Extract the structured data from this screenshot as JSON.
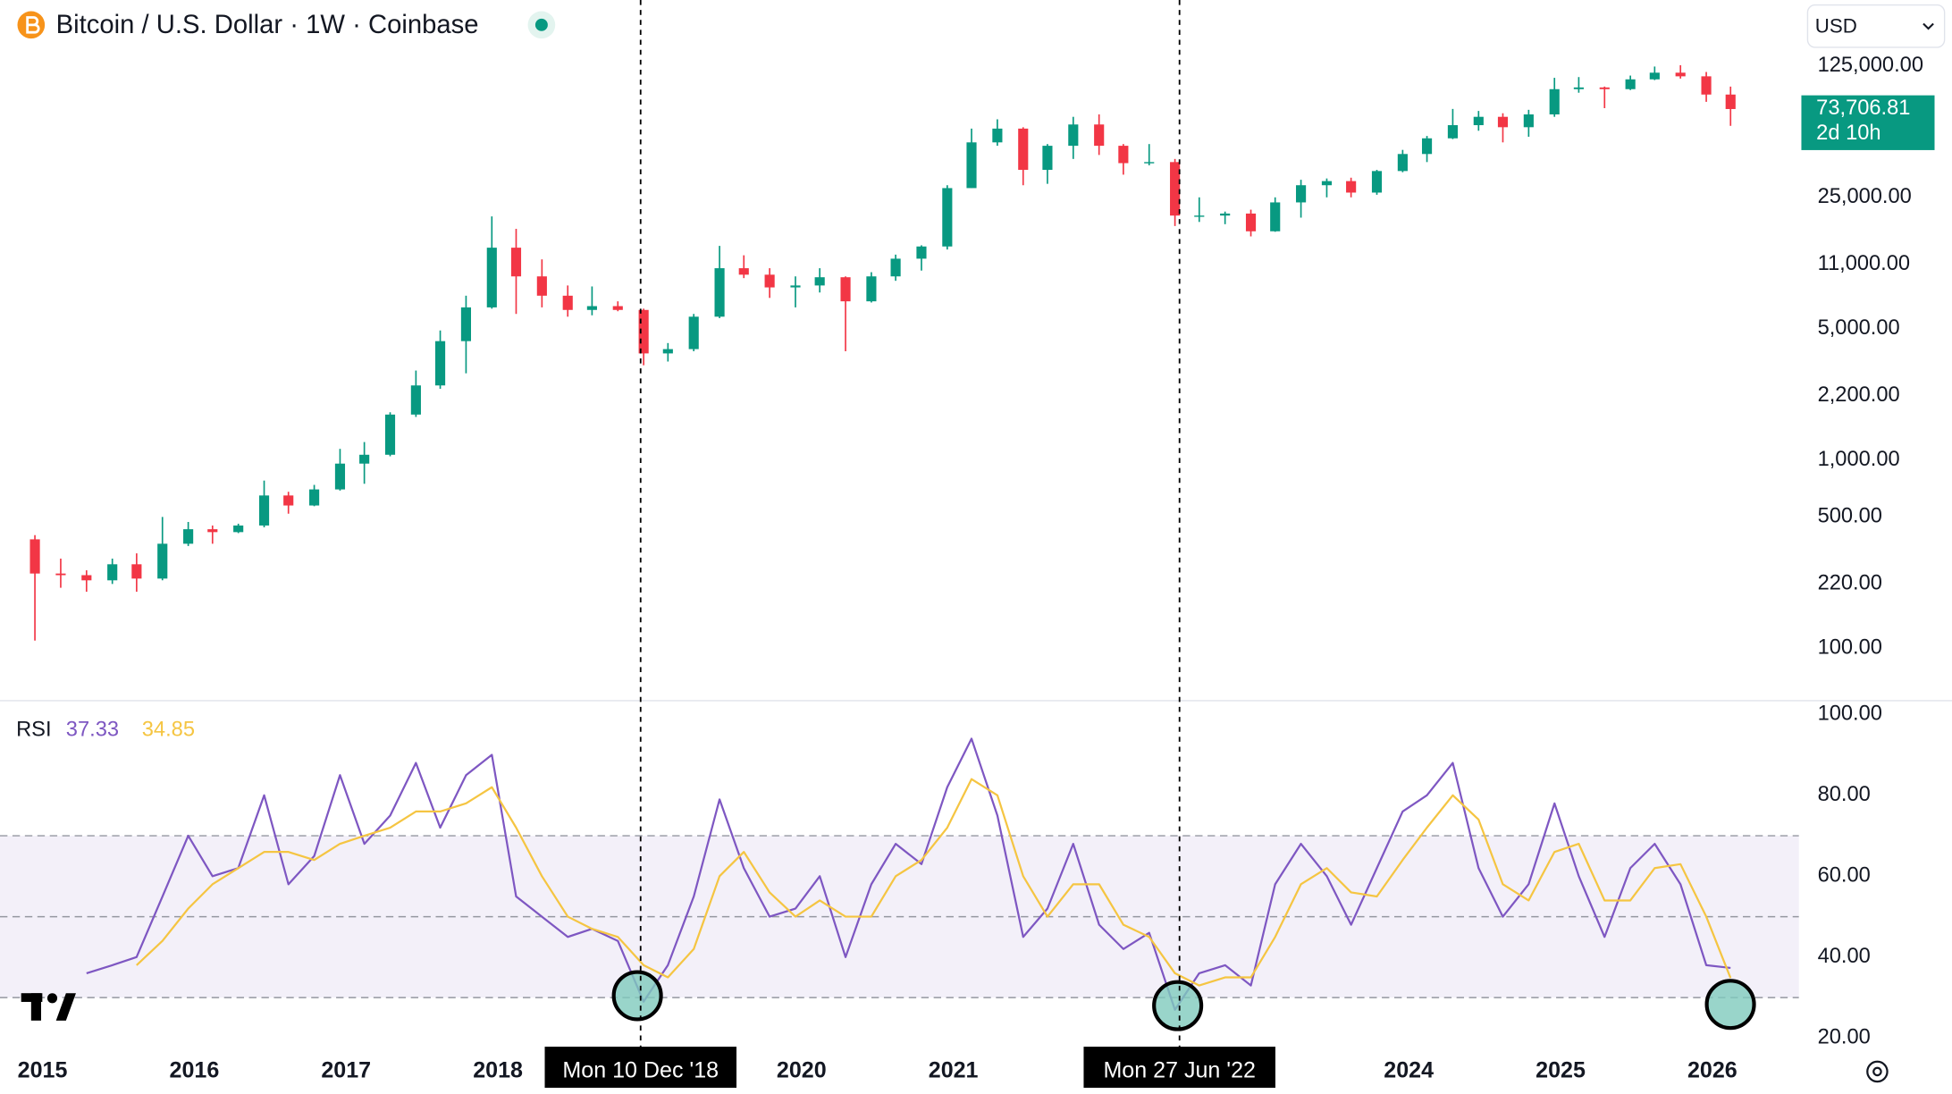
{
  "chart_data": [
    {
      "type": "candlestick",
      "title": "Bitcoin / U.S. Dollar · 1W · Coinbase",
      "currency": "USD",
      "x": [
        2014.95,
        2015.12,
        2015.29,
        2015.46,
        2015.62,
        2015.79,
        2015.96,
        2016.12,
        2016.29,
        2016.46,
        2016.62,
        2016.79,
        2016.96,
        2017.12,
        2017.29,
        2017.46,
        2017.62,
        2017.79,
        2017.96,
        2018.12,
        2018.29,
        2018.46,
        2018.62,
        2018.79,
        2018.96,
        2019.12,
        2019.29,
        2019.46,
        2019.62,
        2019.79,
        2019.96,
        2020.12,
        2020.29,
        2020.46,
        2020.62,
        2020.79,
        2020.96,
        2021.12,
        2021.29,
        2021.46,
        2021.62,
        2021.79,
        2021.96,
        2022.12,
        2022.29,
        2022.46,
        2022.62,
        2022.79,
        2022.96,
        2023.12,
        2023.29,
        2023.46,
        2023.62,
        2023.79,
        2023.96,
        2024.12,
        2024.29,
        2024.46,
        2024.62,
        2024.79,
        2024.96,
        2025.12,
        2025.29,
        2025.46,
        2025.62,
        2025.79,
        2025.96,
        2026.12
      ],
      "open": [
        380,
        250,
        245,
        230,
        280,
        235,
        360,
        430,
        415,
        450,
        650,
        575,
        700,
        960,
        1070,
        1750,
        2500,
        4300,
        6500,
        13500,
        9500,
        7500,
        6300,
        6600,
        6300,
        3700,
        3900,
        5800,
        10500,
        9700,
        8300,
        8500,
        9400,
        7000,
        9500,
        11800,
        13700,
        28000,
        49000,
        58000,
        35000,
        47000,
        61000,
        47000,
        38000,
        38500,
        20000,
        20000,
        20500,
        16500,
        23500,
        29000,
        30500,
        26500,
        34500,
        42500,
        51500,
        60500,
        67000,
        59000,
        69000,
        94000,
        96000,
        94000,
        106000,
        115000,
        110000,
        88000
      ],
      "high": [
        400,
        300,
        260,
        300,
        320,
        500,
        470,
        450,
        460,
        780,
        680,
        740,
        1150,
        1250,
        1800,
        3000,
        4900,
        7500,
        19800,
        17000,
        11700,
        8500,
        8400,
        7000,
        6400,
        4200,
        6000,
        13800,
        12300,
        10500,
        9500,
        10500,
        9500,
        10000,
        12400,
        13900,
        29000,
        58000,
        65000,
        59000,
        48000,
        67000,
        69000,
        48000,
        48000,
        40000,
        25000,
        21000,
        21500,
        25000,
        31000,
        31500,
        31800,
        35000,
        44700,
        53000,
        73800,
        72000,
        70000,
        73000,
        108000,
        109000,
        97000,
        111000,
        124000,
        126000,
        116000,
        97000
      ],
      "low": [
        110,
        210,
        200,
        220,
        200,
        230,
        350,
        360,
        410,
        440,
        520,
        570,
        690,
        750,
        1050,
        1700,
        2400,
        2900,
        6400,
        6000,
        6500,
        5800,
        5900,
        6200,
        3200,
        3350,
        3800,
        5700,
        9300,
        7300,
        6500,
        7800,
        3800,
        6900,
        9000,
        10200,
        13200,
        28000,
        47000,
        29000,
        29500,
        40000,
        42000,
        33000,
        37000,
        17600,
        18500,
        18000,
        15500,
        16400,
        19500,
        25000,
        25000,
        25800,
        34000,
        38500,
        51000,
        56500,
        49000,
        52500,
        67000,
        90000,
        74500,
        93000,
        105000,
        107000,
        80500,
        60000
      ],
      "close": [
        250,
        245,
        230,
        280,
        235,
        360,
        430,
        415,
        450,
        650,
        575,
        700,
        960,
        1070,
        1750,
        2500,
        4300,
        6500,
        13500,
        9500,
        7500,
        6300,
        6600,
        6300,
        3700,
        3900,
        5800,
        10500,
        9700,
        8300,
        8500,
        9400,
        7000,
        9500,
        11800,
        13700,
        28000,
        49000,
        58000,
        35000,
        47000,
        61000,
        47000,
        38000,
        38500,
        20000,
        20000,
        20500,
        16500,
        23500,
        29000,
        30500,
        26500,
        34500,
        42500,
        51500,
        60500,
        67000,
        59000,
        69000,
        94000,
        96000,
        94000,
        106000,
        115000,
        110000,
        88000,
        73706.81
      ],
      "up_color": "#089981",
      "down_color": "#f23645",
      "log": true,
      "xlim": [
        2014.72,
        2026.57
      ],
      "ylim": [
        53.5,
        280000
      ],
      "yticks": [
        {
          "value": 125000,
          "label": "125,000.00"
        },
        {
          "value": 25000,
          "label": "25,000.00"
        },
        {
          "value": 11000,
          "label": "11,000.00"
        },
        {
          "value": 5000,
          "label": "5,000.00"
        },
        {
          "value": 2200,
          "label": "2,200.00"
        },
        {
          "value": 1000,
          "label": "1,000.00"
        },
        {
          "value": 500,
          "label": "500.00"
        },
        {
          "value": 220,
          "label": "220.00"
        },
        {
          "value": 100,
          "label": "100.00"
        }
      ],
      "last_price": {
        "value": 73706.81,
        "label": "73,706.81"
      },
      "countdown": "2d 10h",
      "crosshairs": [
        {
          "x": 2018.94,
          "label": "Mon 10 Dec '18"
        },
        {
          "x": 2022.49,
          "label": "Mon 27 Jun '22"
        }
      ]
    },
    {
      "type": "line",
      "title": "RSI",
      "last_values": [
        37.33,
        34.85
      ],
      "series": [
        {
          "color": "#7e57c2",
          "values": [
            null,
            null,
            36,
            38,
            40,
            55,
            70,
            60,
            62,
            80,
            58,
            65,
            85,
            68,
            75,
            88,
            72,
            85,
            90,
            55,
            50,
            45,
            47,
            44,
            29,
            38,
            55,
            79,
            62,
            50,
            52,
            60,
            40,
            58,
            68,
            63,
            82,
            94,
            75,
            45,
            52,
            68,
            48,
            42,
            46,
            27,
            36,
            38,
            33,
            58,
            68,
            60,
            48,
            62,
            76,
            80,
            88,
            62,
            50,
            58,
            78,
            60,
            45,
            62,
            68,
            58,
            38,
            37.33
          ]
        },
        {
          "color": "#f5c542",
          "values": [
            null,
            null,
            null,
            null,
            38,
            44,
            52,
            58,
            62,
            66,
            66,
            64,
            68,
            70,
            72,
            76,
            76,
            78,
            82,
            72,
            60,
            50,
            47,
            45,
            38,
            35,
            42,
            60,
            66,
            56,
            50,
            54,
            50,
            50,
            60,
            64,
            72,
            84,
            80,
            60,
            50,
            58,
            58,
            48,
            45,
            36,
            33,
            35,
            35,
            45,
            58,
            62,
            56,
            55,
            64,
            72,
            80,
            74,
            58,
            54,
            66,
            68,
            54,
            54,
            62,
            63,
            50,
            34.85
          ]
        }
      ],
      "levels": [
        70,
        50,
        30
      ],
      "band_color": "#7e57c2",
      "ylim": [
        15.7,
        103.4
      ],
      "yticks": [
        {
          "value": 100,
          "label": "100.00"
        },
        {
          "value": 80,
          "label": "80.00"
        },
        {
          "value": 60,
          "label": "60.00"
        },
        {
          "value": 40,
          "label": "40.00"
        },
        {
          "value": 20,
          "label": "20.00"
        }
      ],
      "xticks": [
        2015,
        2016,
        2017,
        2018,
        2020,
        2021,
        2024,
        2025,
        2026
      ]
    }
  ]
}
